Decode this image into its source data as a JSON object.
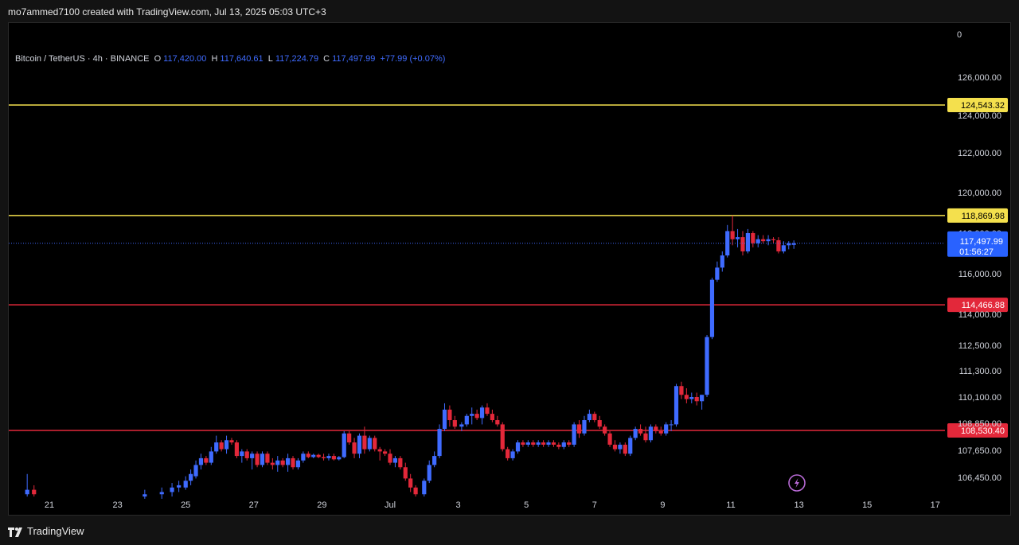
{
  "header": {
    "credit": "mo7ammed7100 created with TradingView.com, Jul 13, 2025 05:03 UTC+3"
  },
  "legend": {
    "symbol": "Bitcoin / TetherUS · 4h · BINANCE",
    "o_label": "O",
    "o": "117,420.00",
    "h_label": "H",
    "h": "117,640.61",
    "l_label": "L",
    "l": "117,224.79",
    "c_label": "C",
    "c": "117,497.99",
    "change": "+77.99 (+0.07%)"
  },
  "footer": {
    "brand": "TradingView"
  },
  "colors": {
    "up": "#3f6bff",
    "down": "#e3283a",
    "yellow": "#f4e04d",
    "red_line": "#e3283a",
    "bg": "#000000"
  },
  "chart_data": {
    "type": "candlestick",
    "title": "Bitcoin / TetherUS · 4h · BINANCE",
    "scale_top_label": "0",
    "y_ticks": [
      126000,
      124000,
      122000,
      120000,
      118000,
      116000,
      114000,
      112500,
      111300,
      110100,
      108850,
      107650,
      106450
    ],
    "y_tick_labels": [
      "126,000.00",
      "124,000.00",
      "122,000.00",
      "120,000.00",
      "118,000.00",
      "116,000.00",
      "114,000.00",
      "112,500.00",
      "111,300.00",
      "110,100.00",
      "108,850.00",
      "107,650.00",
      "106,450.00"
    ],
    "x_ticks": [
      {
        "label": "21",
        "day": 21
      },
      {
        "label": "23",
        "day": 23
      },
      {
        "label": "25",
        "day": 25
      },
      {
        "label": "27",
        "day": 27
      },
      {
        "label": "29",
        "day": 29
      },
      {
        "label": "Jul",
        "day": 31
      },
      {
        "label": "3",
        "day": 33
      },
      {
        "label": "5",
        "day": 35
      },
      {
        "label": "7",
        "day": 37
      },
      {
        "label": "9",
        "day": 39
      },
      {
        "label": "11",
        "day": 41
      },
      {
        "label": "13",
        "day": 43
      },
      {
        "label": "15",
        "day": 45
      },
      {
        "label": "17",
        "day": 47
      }
    ],
    "horizontal_lines": [
      {
        "price": 124543.32,
        "label": "124,543.32",
        "color": "yellow"
      },
      {
        "price": 118869.98,
        "label": "118,869.98",
        "color": "yellow"
      },
      {
        "price": 114466.88,
        "label": "114,466.88",
        "color": "red_line"
      },
      {
        "price": 108530.4,
        "label": "108,530.40",
        "color": "red_line"
      }
    ],
    "last_price": {
      "price": 117497.99,
      "label": "117,497.99",
      "countdown": "01:56:27"
    },
    "candles": [
      {
        "d": 20.35,
        "o": 105700,
        "h": 106600,
        "l": 105600,
        "c": 105900
      },
      {
        "d": 20.55,
        "o": 105900,
        "h": 106100,
        "l": 105600,
        "c": 105700
      },
      {
        "d": 23.8,
        "o": 105600,
        "h": 105900,
        "l": 105500,
        "c": 105700
      },
      {
        "d": 24.3,
        "o": 105700,
        "h": 106000,
        "l": 105500,
        "c": 105800
      },
      {
        "d": 24.6,
        "o": 105800,
        "h": 106200,
        "l": 105600,
        "c": 106000
      },
      {
        "d": 24.8,
        "o": 106000,
        "h": 106300,
        "l": 105800,
        "c": 106100
      },
      {
        "d": 25.0,
        "o": 106000,
        "h": 106500,
        "l": 105900,
        "c": 106300
      },
      {
        "d": 25.15,
        "o": 106300,
        "h": 106800,
        "l": 106100,
        "c": 106600
      },
      {
        "d": 25.3,
        "o": 106500,
        "h": 107200,
        "l": 106400,
        "c": 107000
      },
      {
        "d": 25.45,
        "o": 107000,
        "h": 107500,
        "l": 106800,
        "c": 107300
      },
      {
        "d": 25.6,
        "o": 107300,
        "h": 107400,
        "l": 107000,
        "c": 107100
      },
      {
        "d": 25.75,
        "o": 107100,
        "h": 107800,
        "l": 107000,
        "c": 107600
      },
      {
        "d": 25.9,
        "o": 107600,
        "h": 108300,
        "l": 107500,
        "c": 108000
      },
      {
        "d": 26.05,
        "o": 108000,
        "h": 108100,
        "l": 107600,
        "c": 107700
      },
      {
        "d": 26.2,
        "o": 107700,
        "h": 108300,
        "l": 107500,
        "c": 108100
      },
      {
        "d": 26.35,
        "o": 108100,
        "h": 108200,
        "l": 107900,
        "c": 108000
      },
      {
        "d": 26.5,
        "o": 108000,
        "h": 108100,
        "l": 107300,
        "c": 107400
      },
      {
        "d": 26.65,
        "o": 107400,
        "h": 107700,
        "l": 107100,
        "c": 107600
      },
      {
        "d": 26.8,
        "o": 107600,
        "h": 107700,
        "l": 107200,
        "c": 107300
      },
      {
        "d": 26.95,
        "o": 107300,
        "h": 107600,
        "l": 106800,
        "c": 107500
      },
      {
        "d": 27.1,
        "o": 107500,
        "h": 107600,
        "l": 106900,
        "c": 107000
      },
      {
        "d": 27.25,
        "o": 107000,
        "h": 107600,
        "l": 106900,
        "c": 107500
      },
      {
        "d": 27.4,
        "o": 107500,
        "h": 107600,
        "l": 107000,
        "c": 107100
      },
      {
        "d": 27.55,
        "o": 107100,
        "h": 107300,
        "l": 106800,
        "c": 107000
      },
      {
        "d": 27.7,
        "o": 107000,
        "h": 107400,
        "l": 106700,
        "c": 107200
      },
      {
        "d": 27.85,
        "o": 107200,
        "h": 107300,
        "l": 106900,
        "c": 107000
      },
      {
        "d": 28.0,
        "o": 107000,
        "h": 107500,
        "l": 106700,
        "c": 107300
      },
      {
        "d": 28.15,
        "o": 107300,
        "h": 107400,
        "l": 106800,
        "c": 106900
      },
      {
        "d": 28.3,
        "o": 106900,
        "h": 107300,
        "l": 106800,
        "c": 107200
      },
      {
        "d": 28.45,
        "o": 107200,
        "h": 107600,
        "l": 107100,
        "c": 107500
      },
      {
        "d": 28.6,
        "o": 107500,
        "h": 107600,
        "l": 107300,
        "c": 107350
      },
      {
        "d": 28.75,
        "o": 107350,
        "h": 107500,
        "l": 107300,
        "c": 107450
      },
      {
        "d": 28.9,
        "o": 107450,
        "h": 107500,
        "l": 107300,
        "c": 107350
      },
      {
        "d": 29.05,
        "o": 107350,
        "h": 107500,
        "l": 107200,
        "c": 107300
      },
      {
        "d": 29.2,
        "o": 107300,
        "h": 107500,
        "l": 107200,
        "c": 107400
      },
      {
        "d": 29.35,
        "o": 107400,
        "h": 107500,
        "l": 107200,
        "c": 107250
      },
      {
        "d": 29.5,
        "o": 107250,
        "h": 107400,
        "l": 107200,
        "c": 107350
      },
      {
        "d": 29.65,
        "o": 107350,
        "h": 108500,
        "l": 107300,
        "c": 108400
      },
      {
        "d": 29.8,
        "o": 108400,
        "h": 108500,
        "l": 107900,
        "c": 108000
      },
      {
        "d": 29.95,
        "o": 108000,
        "h": 108200,
        "l": 107300,
        "c": 107500
      },
      {
        "d": 30.1,
        "o": 107500,
        "h": 108400,
        "l": 107300,
        "c": 108300
      },
      {
        "d": 30.25,
        "o": 108300,
        "h": 108700,
        "l": 107500,
        "c": 107700
      },
      {
        "d": 30.4,
        "o": 107700,
        "h": 108300,
        "l": 107600,
        "c": 108200
      },
      {
        "d": 30.55,
        "o": 108200,
        "h": 108300,
        "l": 107600,
        "c": 107700
      },
      {
        "d": 30.7,
        "o": 107700,
        "h": 107800,
        "l": 107200,
        "c": 107600
      },
      {
        "d": 30.85,
        "o": 107600,
        "h": 107700,
        "l": 107400,
        "c": 107500
      },
      {
        "d": 31.0,
        "o": 107500,
        "h": 107700,
        "l": 107000,
        "c": 107100
      },
      {
        "d": 31.15,
        "o": 107100,
        "h": 107400,
        "l": 106900,
        "c": 107300
      },
      {
        "d": 31.3,
        "o": 107300,
        "h": 107400,
        "l": 106800,
        "c": 106900
      },
      {
        "d": 31.45,
        "o": 106900,
        "h": 107100,
        "l": 106300,
        "c": 106400
      },
      {
        "d": 31.6,
        "o": 106400,
        "h": 106600,
        "l": 105800,
        "c": 106000
      },
      {
        "d": 31.75,
        "o": 106000,
        "h": 106100,
        "l": 105600,
        "c": 105700
      },
      {
        "d": 32.0,
        "o": 105700,
        "h": 106400,
        "l": 105600,
        "c": 106300
      },
      {
        "d": 32.15,
        "o": 106300,
        "h": 107200,
        "l": 106200,
        "c": 107000
      },
      {
        "d": 32.3,
        "o": 107000,
        "h": 107600,
        "l": 106900,
        "c": 107400
      },
      {
        "d": 32.45,
        "o": 107400,
        "h": 108800,
        "l": 107300,
        "c": 108600
      },
      {
        "d": 32.6,
        "o": 108600,
        "h": 109800,
        "l": 108500,
        "c": 109500
      },
      {
        "d": 32.75,
        "o": 109500,
        "h": 109700,
        "l": 108700,
        "c": 109000
      },
      {
        "d": 32.9,
        "o": 109000,
        "h": 109200,
        "l": 108600,
        "c": 108700
      },
      {
        "d": 33.1,
        "o": 108700,
        "h": 108900,
        "l": 108500,
        "c": 108800
      },
      {
        "d": 33.25,
        "o": 108800,
        "h": 109300,
        "l": 108700,
        "c": 109200
      },
      {
        "d": 33.4,
        "o": 109200,
        "h": 109600,
        "l": 108800,
        "c": 109300
      },
      {
        "d": 33.55,
        "o": 109300,
        "h": 109500,
        "l": 109000,
        "c": 109100
      },
      {
        "d": 33.7,
        "o": 109100,
        "h": 109700,
        "l": 108800,
        "c": 109600
      },
      {
        "d": 33.85,
        "o": 109600,
        "h": 109800,
        "l": 109200,
        "c": 109300
      },
      {
        "d": 34.0,
        "o": 109300,
        "h": 109500,
        "l": 108900,
        "c": 109000
      },
      {
        "d": 34.15,
        "o": 109000,
        "h": 109200,
        "l": 108700,
        "c": 108800
      },
      {
        "d": 34.3,
        "o": 108800,
        "h": 108900,
        "l": 107600,
        "c": 107700
      },
      {
        "d": 34.45,
        "o": 107700,
        "h": 107800,
        "l": 107200,
        "c": 107300
      },
      {
        "d": 34.6,
        "o": 107300,
        "h": 107700,
        "l": 107200,
        "c": 107600
      },
      {
        "d": 34.75,
        "o": 107600,
        "h": 108100,
        "l": 107500,
        "c": 108000
      },
      {
        "d": 34.9,
        "o": 108000,
        "h": 108100,
        "l": 107800,
        "c": 107900
      },
      {
        "d": 35.05,
        "o": 107900,
        "h": 108100,
        "l": 107800,
        "c": 108000
      },
      {
        "d": 35.2,
        "o": 108000,
        "h": 108100,
        "l": 107800,
        "c": 107900
      },
      {
        "d": 35.35,
        "o": 107900,
        "h": 108100,
        "l": 107800,
        "c": 108000
      },
      {
        "d": 35.5,
        "o": 108000,
        "h": 108100,
        "l": 107800,
        "c": 107900
      },
      {
        "d": 35.65,
        "o": 107900,
        "h": 108100,
        "l": 107800,
        "c": 108000
      },
      {
        "d": 35.8,
        "o": 108000,
        "h": 108100,
        "l": 107800,
        "c": 107900
      },
      {
        "d": 35.95,
        "o": 107900,
        "h": 108000,
        "l": 107700,
        "c": 107800
      },
      {
        "d": 36.1,
        "o": 107800,
        "h": 108100,
        "l": 107700,
        "c": 108000
      },
      {
        "d": 36.25,
        "o": 108000,
        "h": 108100,
        "l": 107800,
        "c": 107900
      },
      {
        "d": 36.4,
        "o": 107900,
        "h": 108900,
        "l": 107800,
        "c": 108800
      },
      {
        "d": 36.55,
        "o": 108800,
        "h": 109000,
        "l": 108200,
        "c": 108400
      },
      {
        "d": 36.7,
        "o": 108400,
        "h": 109200,
        "l": 108300,
        "c": 109000
      },
      {
        "d": 36.85,
        "o": 109000,
        "h": 109500,
        "l": 108900,
        "c": 109300
      },
      {
        "d": 37.0,
        "o": 109300,
        "h": 109400,
        "l": 108900,
        "c": 109000
      },
      {
        "d": 37.15,
        "o": 109000,
        "h": 109200,
        "l": 108600,
        "c": 108700
      },
      {
        "d": 37.3,
        "o": 108700,
        "h": 108800,
        "l": 108300,
        "c": 108400
      },
      {
        "d": 37.45,
        "o": 108400,
        "h": 108500,
        "l": 107800,
        "c": 107900
      },
      {
        "d": 37.6,
        "o": 107900,
        "h": 108100,
        "l": 107600,
        "c": 107700
      },
      {
        "d": 37.75,
        "o": 107700,
        "h": 108000,
        "l": 107500,
        "c": 107900
      },
      {
        "d": 37.9,
        "o": 107900,
        "h": 108000,
        "l": 107400,
        "c": 107500
      },
      {
        "d": 38.05,
        "o": 107500,
        "h": 108300,
        "l": 107400,
        "c": 108200
      },
      {
        "d": 38.2,
        "o": 108200,
        "h": 108700,
        "l": 108100,
        "c": 108600
      },
      {
        "d": 38.35,
        "o": 108600,
        "h": 108800,
        "l": 108300,
        "c": 108400
      },
      {
        "d": 38.5,
        "o": 108400,
        "h": 108700,
        "l": 108000,
        "c": 108100
      },
      {
        "d": 38.65,
        "o": 108100,
        "h": 108800,
        "l": 108000,
        "c": 108700
      },
      {
        "d": 38.8,
        "o": 108700,
        "h": 108800,
        "l": 108400,
        "c": 108500
      },
      {
        "d": 38.95,
        "o": 108500,
        "h": 108700,
        "l": 108300,
        "c": 108400
      },
      {
        "d": 39.1,
        "o": 108400,
        "h": 108900,
        "l": 108300,
        "c": 108800
      },
      {
        "d": 39.25,
        "o": 108800,
        "h": 109000,
        "l": 108500,
        "c": 108800
      },
      {
        "d": 39.4,
        "o": 108800,
        "h": 110700,
        "l": 108700,
        "c": 110600
      },
      {
        "d": 39.55,
        "o": 110600,
        "h": 110800,
        "l": 110000,
        "c": 110200
      },
      {
        "d": 39.7,
        "o": 110200,
        "h": 110500,
        "l": 109800,
        "c": 110000
      },
      {
        "d": 39.85,
        "o": 110000,
        "h": 110300,
        "l": 109800,
        "c": 110100
      },
      {
        "d": 40.0,
        "o": 110100,
        "h": 110300,
        "l": 109700,
        "c": 109900
      },
      {
        "d": 40.15,
        "o": 109900,
        "h": 110200,
        "l": 109500,
        "c": 110200
      },
      {
        "d": 40.3,
        "o": 110200,
        "h": 113000,
        "l": 110100,
        "c": 112900
      },
      {
        "d": 40.45,
        "o": 112900,
        "h": 115800,
        "l": 112800,
        "c": 115700
      },
      {
        "d": 40.6,
        "o": 115700,
        "h": 116600,
        "l": 115600,
        "c": 116300
      },
      {
        "d": 40.75,
        "o": 116300,
        "h": 117100,
        "l": 116100,
        "c": 116900
      },
      {
        "d": 40.9,
        "o": 116900,
        "h": 118400,
        "l": 116800,
        "c": 118100
      },
      {
        "d": 41.05,
        "o": 118100,
        "h": 118869,
        "l": 117400,
        "c": 117700
      },
      {
        "d": 41.2,
        "o": 117700,
        "h": 118200,
        "l": 117300,
        "c": 117800
      },
      {
        "d": 41.35,
        "o": 117800,
        "h": 118100,
        "l": 116900,
        "c": 117100
      },
      {
        "d": 41.5,
        "o": 117100,
        "h": 118200,
        "l": 117000,
        "c": 118000
      },
      {
        "d": 41.65,
        "o": 118000,
        "h": 118100,
        "l": 117300,
        "c": 117500
      },
      {
        "d": 41.8,
        "o": 117500,
        "h": 117900,
        "l": 117300,
        "c": 117700
      },
      {
        "d": 41.95,
        "o": 117700,
        "h": 117900,
        "l": 117500,
        "c": 117600
      },
      {
        "d": 42.1,
        "o": 117600,
        "h": 117900,
        "l": 117400,
        "c": 117700
      },
      {
        "d": 42.25,
        "o": 117700,
        "h": 117800,
        "l": 117500,
        "c": 117650
      },
      {
        "d": 42.4,
        "o": 117650,
        "h": 117800,
        "l": 117000,
        "c": 117100
      },
      {
        "d": 42.55,
        "o": 117100,
        "h": 117600,
        "l": 117000,
        "c": 117400
      },
      {
        "d": 42.7,
        "o": 117400,
        "h": 117600,
        "l": 117200,
        "c": 117500
      },
      {
        "d": 42.85,
        "o": 117420,
        "h": 117640.61,
        "l": 117224.79,
        "c": 117497.99
      }
    ]
  }
}
